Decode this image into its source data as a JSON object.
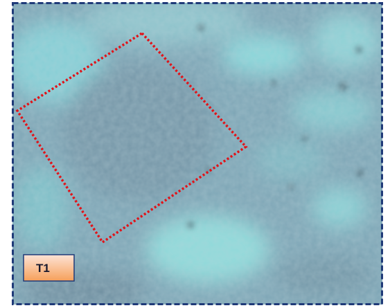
{
  "label": "T1"
}
